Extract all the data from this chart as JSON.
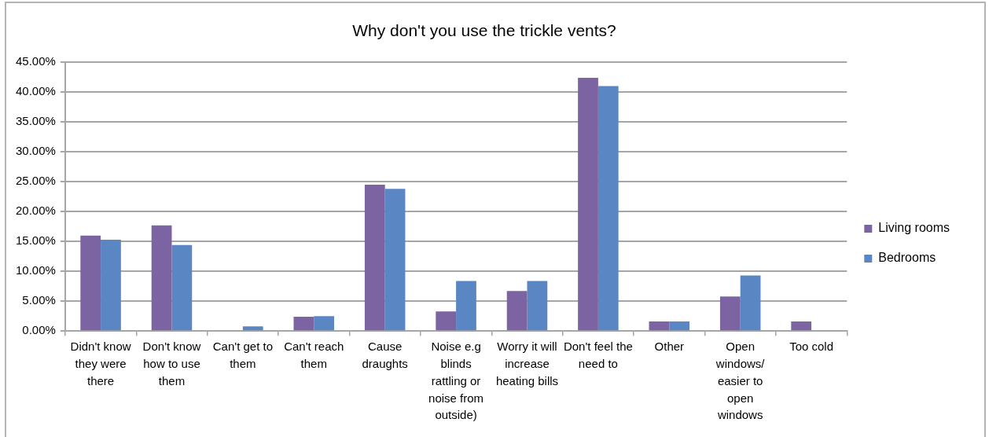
{
  "chart_data": {
    "type": "bar",
    "title": "Why don't you use the trickle vents?",
    "categories": [
      "Didn't know they were there",
      "Don't know how to use them",
      "Can't get to them",
      "Can't reach them",
      "Cause draughts",
      "Noise e.g blinds rattling or noise from outside)",
      "Worry it will increase heating bills",
      "Don't feel the need to",
      "Other",
      "Open windows/ easier to open windows",
      "Too cold"
    ],
    "series": [
      {
        "name": "Living rooms",
        "color": "#7b64a1",
        "values": [
          16.0,
          17.7,
          0,
          2.4,
          24.5,
          3.3,
          6.7,
          42.4,
          1.6,
          5.8,
          1.6
        ]
      },
      {
        "name": "Bedrooms",
        "color": "#5b86c4",
        "values": [
          15.3,
          14.4,
          0.8,
          2.5,
          23.8,
          8.4,
          8.4,
          41.0,
          1.6,
          9.3,
          0
        ]
      }
    ],
    "ylim": [
      0,
      45
    ],
    "yticks": [
      {
        "value": 0,
        "label": "0.00%"
      },
      {
        "value": 5,
        "label": "5.00%"
      },
      {
        "value": 10,
        "label": "10.00%"
      },
      {
        "value": 15,
        "label": "15.00%"
      },
      {
        "value": 20,
        "label": "20.00%"
      },
      {
        "value": 25,
        "label": "25.00%"
      },
      {
        "value": 30,
        "label": "30.00%"
      },
      {
        "value": 35,
        "label": "35.00%"
      },
      {
        "value": 40,
        "label": "40.00%"
      },
      {
        "value": 45,
        "label": "45.00%"
      }
    ],
    "grid": "y",
    "legend": "right"
  }
}
